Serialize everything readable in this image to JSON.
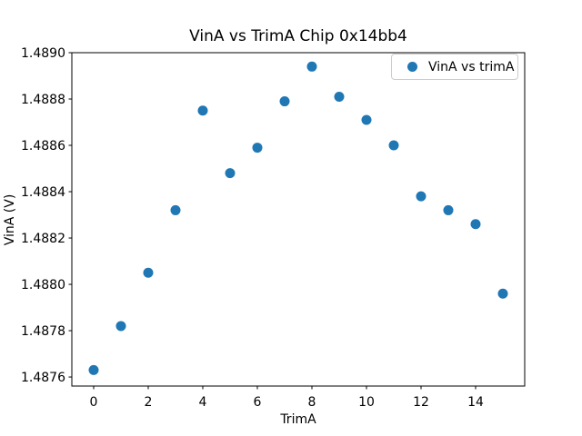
{
  "figure": {
    "background": "#ffffff",
    "text_color": "#000000",
    "spine_color": "#000000"
  },
  "chart_data": {
    "type": "scatter",
    "title": "VinA vs TrimA Chip 0x14bb4",
    "xlabel": "TrimA",
    "ylabel": "VinA (V)",
    "legend": {
      "label": "VinA vs trimA",
      "position": "upper right"
    },
    "marker_color": "#1f77b4",
    "grid": false,
    "x": [
      0,
      1,
      2,
      3,
      4,
      5,
      6,
      7,
      8,
      9,
      10,
      11,
      12,
      13,
      14,
      15
    ],
    "y": [
      1.48763,
      1.48782,
      1.48805,
      1.48832,
      1.48875,
      1.48848,
      1.48859,
      1.48879,
      1.48894,
      1.48881,
      1.48871,
      1.4886,
      1.48838,
      1.48832,
      1.48826,
      1.48796
    ],
    "xticks": [
      0,
      2,
      4,
      6,
      8,
      10,
      12,
      14
    ],
    "xtick_labels": [
      "0",
      "2",
      "4",
      "6",
      "8",
      "10",
      "12",
      "14"
    ],
    "yticks": [
      1.4876,
      1.4878,
      1.488,
      1.4882,
      1.4884,
      1.4886,
      1.4888,
      1.489
    ],
    "ytick_labels": [
      "1.4876",
      "1.4878",
      "1.4880",
      "1.4882",
      "1.4884",
      "1.4886",
      "1.4888",
      "1.4890"
    ],
    "xlim": [
      -0.8,
      15.8
    ],
    "ylim": [
      1.487561,
      1.489
    ]
  }
}
